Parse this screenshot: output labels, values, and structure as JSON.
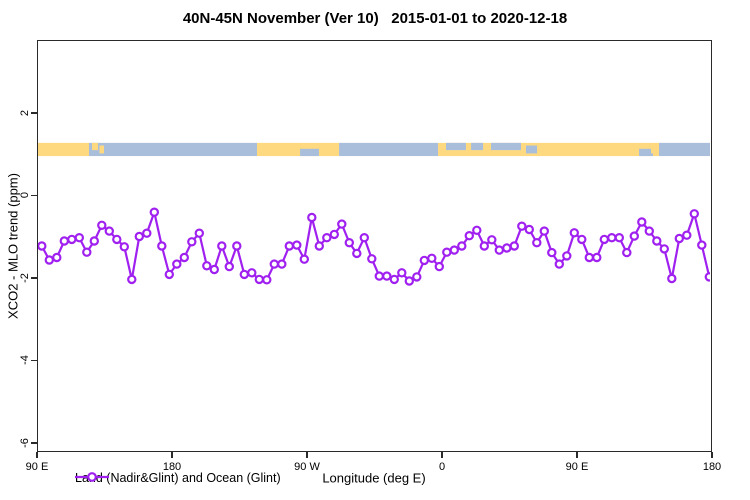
{
  "title": "40N-45N November (Ver 10)   2015-01-01 to 2020-12-18",
  "axes": {
    "ylabel": "XCO2 - MLO trend (ppm)",
    "xlabel": "Longitude (deg E)",
    "y_ticks": [
      {
        "label": "2",
        "value": 2
      },
      {
        "label": "0",
        "value": 0
      },
      {
        "label": "-2",
        "value": -2
      },
      {
        "label": "-4",
        "value": -4
      },
      {
        "label": "-6",
        "value": -6
      }
    ],
    "x_ticks": [
      {
        "label": "90 E",
        "lon": 90
      },
      {
        "label": "180",
        "lon": 180
      },
      {
        "label": "90 W",
        "lon": 270
      },
      {
        "label": "0",
        "lon": 360
      },
      {
        "label": "90 E",
        "lon": 450
      },
      {
        "label": "180",
        "lon": 540
      }
    ]
  },
  "legend": {
    "label": "Land (Nadir&Glint) and Ocean (Glint)"
  },
  "colors": {
    "series": "#A020F0",
    "marker_fill": "#FFFFFF",
    "land": "#FFD980",
    "ocean": "#A9BEDB",
    "axis": "#2a2a2a"
  },
  "chart_data": {
    "type": "line",
    "series_name": "Land (Nadir&Glint) and Ocean (Glint)",
    "marker": "open-circle",
    "xlabel": "Longitude (deg E)",
    "ylabel": "XCO2 - MLO trend (ppm)",
    "xlim": [
      90,
      540
    ],
    "ylim": [
      -6.22,
      3.77
    ],
    "x_start": 92.5,
    "x_step": 5,
    "x_units": "plot longitude (deg E, wrapping 90E->180->90W->0->90E->180)",
    "values": [
      -1.2,
      -1.54,
      -1.48,
      -1.08,
      -1.04,
      -1.0,
      -1.35,
      -1.08,
      -0.7,
      -0.84,
      -1.04,
      -1.22,
      -2.01,
      -0.97,
      -0.89,
      -0.38,
      -1.2,
      -1.89,
      -1.64,
      -1.48,
      -1.1,
      -0.89,
      -1.68,
      -1.77,
      -1.2,
      -1.7,
      -1.2,
      -1.89,
      -1.85,
      -2.01,
      -2.02,
      -1.64,
      -1.64,
      -1.2,
      -1.18,
      -1.52,
      -0.51,
      -1.2,
      -1.0,
      -0.92,
      -0.67,
      -1.12,
      -1.38,
      -1.0,
      -1.51,
      -1.93,
      -1.93,
      -2.01,
      -1.85,
      -2.05,
      -1.95,
      -1.55,
      -1.5,
      -1.7,
      -1.35,
      -1.3,
      -1.2,
      -0.95,
      -0.82,
      -1.2,
      -1.05,
      -1.3,
      -1.25,
      -1.2,
      -0.72,
      -0.8,
      -1.12,
      -0.84,
      -1.36,
      -1.64,
      -1.44,
      -0.88,
      -1.04,
      -1.48,
      -1.48,
      -1.04,
      -1.0,
      -1.0,
      -1.36,
      -0.96,
      -0.62,
      -0.84,
      -1.08,
      -1.27,
      -1.99,
      -1.02,
      -0.94,
      -0.42,
      -1.18,
      -1.95
    ],
    "land_ocean_band": {
      "y_top": 1.3,
      "y_bottom": 0.98,
      "segments": [
        {
          "from": 90,
          "to": 124,
          "type": "land"
        },
        {
          "from": 124,
          "to": 236,
          "type": "ocean"
        },
        {
          "from": 236,
          "to": 290.7,
          "type": "land"
        },
        {
          "from": 290.7,
          "to": 356.7,
          "type": "ocean"
        },
        {
          "from": 356.7,
          "to": 504,
          "type": "land"
        },
        {
          "from": 504,
          "to": 540,
          "type": "ocean"
        }
      ],
      "patches": [
        {
          "from": 126,
          "to": 130,
          "type": "land",
          "part": "top"
        },
        {
          "from": 131,
          "to": 134,
          "type": "land",
          "part": "mid"
        },
        {
          "from": 264.7,
          "to": 277.3,
          "type": "ocean",
          "part": "bottom"
        },
        {
          "from": 362,
          "to": 375.3,
          "type": "ocean",
          "part": "top"
        },
        {
          "from": 378.7,
          "to": 386.7,
          "type": "ocean",
          "part": "top"
        },
        {
          "from": 392,
          "to": 412,
          "type": "ocean",
          "part": "top"
        },
        {
          "from": 415.3,
          "to": 422.7,
          "type": "ocean",
          "part": "mid"
        },
        {
          "from": 490.7,
          "to": 500,
          "type": "ocean",
          "part": "bottom"
        },
        {
          "from": 498.7,
          "to": 502.7,
          "type": "land",
          "part": "mid"
        }
      ]
    }
  }
}
